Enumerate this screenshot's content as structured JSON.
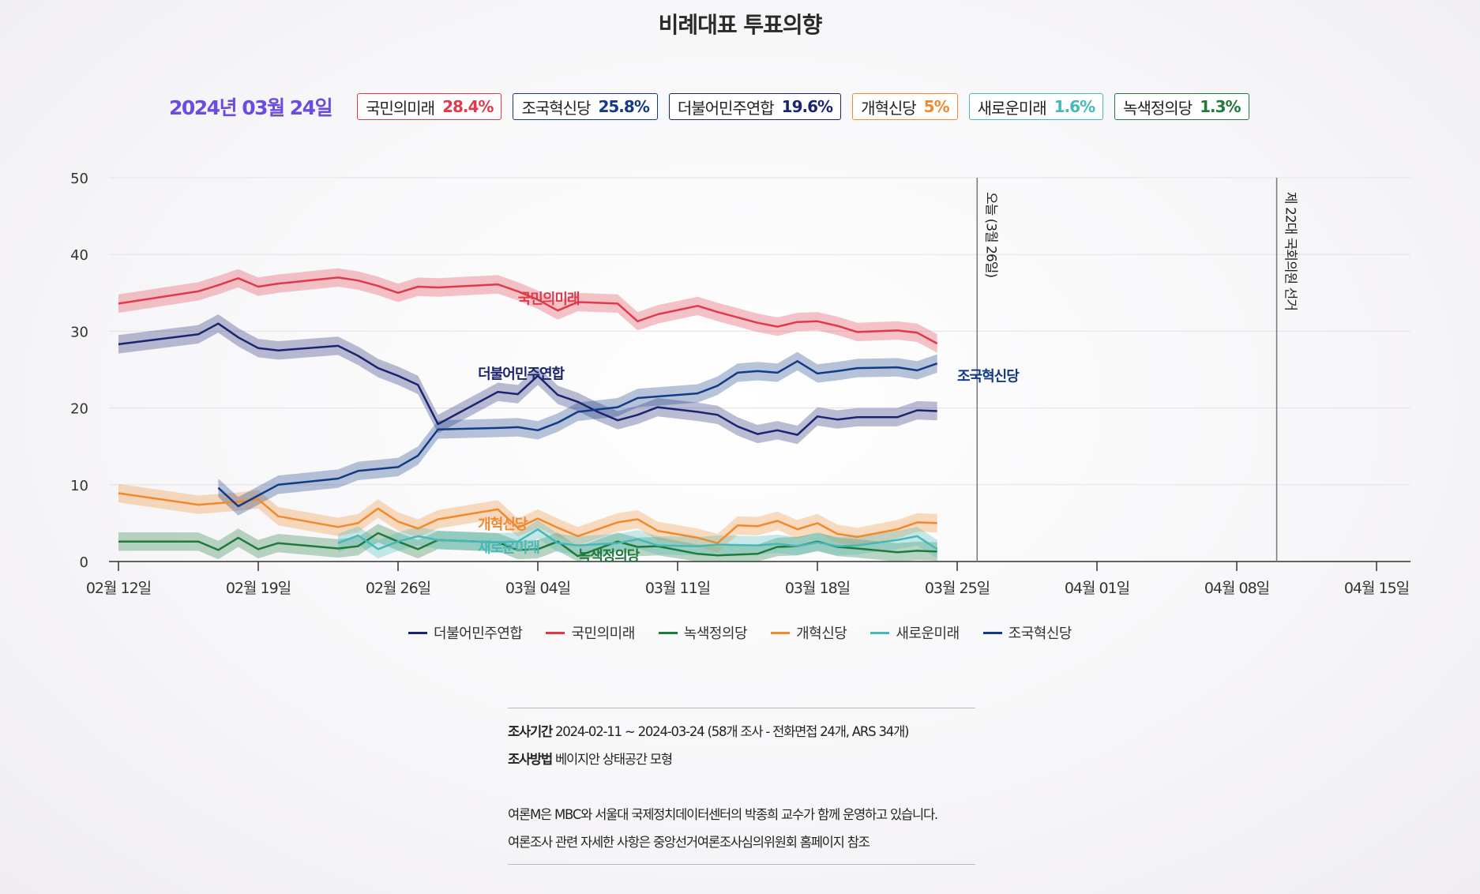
{
  "title": "비례대표 투표의향",
  "summary": {
    "date": "2024년 03월 24일",
    "badges": [
      {
        "name": "국민의미래",
        "value": "28.4%",
        "color": "#e03a4a"
      },
      {
        "name": "조국혁신당",
        "value": "25.8%",
        "color": "#123b86"
      },
      {
        "name": "더불어민주연합",
        "value": "19.6%",
        "color": "#1b2470"
      },
      {
        "name": "개혁신당",
        "value": "5%",
        "color": "#f08a2e"
      },
      {
        "name": "새로운미래",
        "value": "1.6%",
        "color": "#46b8b8"
      },
      {
        "name": "녹색정의당",
        "value": "1.3%",
        "color": "#1f7a3c"
      }
    ]
  },
  "chart_data": {
    "type": "line",
    "xlabel": "",
    "ylabel": "",
    "ylim": [
      0,
      50
    ],
    "yticks": [
      0,
      10,
      20,
      30,
      40,
      50
    ],
    "xlim": [
      "2024-02-12",
      "2024-04-16"
    ],
    "xticks": [
      {
        "date": "2024-02-12",
        "label": "02월 12일"
      },
      {
        "date": "2024-02-19",
        "label": "02월 19일"
      },
      {
        "date": "2024-02-26",
        "label": "02월 26일"
      },
      {
        "date": "2024-03-04",
        "label": "03월 04일"
      },
      {
        "date": "2024-03-11",
        "label": "03월 11일"
      },
      {
        "date": "2024-03-18",
        "label": "03월 18일"
      },
      {
        "date": "2024-03-25",
        "label": "03월 25일"
      },
      {
        "date": "2024-04-01",
        "label": "04월 01일"
      },
      {
        "date": "2024-04-08",
        "label": "04월 08일"
      },
      {
        "date": "2024-04-15",
        "label": "04월 15일"
      }
    ],
    "grid": true,
    "legend_position": "bottom-center",
    "band_halfwidth": 1.2,
    "reference_lines": [
      {
        "date": "2024-03-26",
        "label": "오늘 (3월 26일)"
      },
      {
        "date": "2024-04-10",
        "label": "제 22대 국회의원 선거"
      }
    ],
    "series": [
      {
        "name": "더불어민주연합",
        "color": "#1b2470",
        "label_at": [
          "2024-03-01",
          23.8
        ],
        "points": [
          [
            "2024-02-12",
            28.3
          ],
          [
            "2024-02-16",
            29.6
          ],
          [
            "2024-02-17",
            31.0
          ],
          [
            "2024-02-18",
            29.2
          ],
          [
            "2024-02-19",
            27.8
          ],
          [
            "2024-02-20",
            27.5
          ],
          [
            "2024-02-23",
            28.1
          ],
          [
            "2024-02-24",
            26.8
          ],
          [
            "2024-02-25",
            25.2
          ],
          [
            "2024-02-26",
            24.2
          ],
          [
            "2024-02-27",
            23.0
          ],
          [
            "2024-02-28",
            17.9
          ],
          [
            "2024-03-02",
            22.1
          ],
          [
            "2024-03-03",
            21.8
          ],
          [
            "2024-03-04",
            24.2
          ],
          [
            "2024-03-05",
            21.7
          ],
          [
            "2024-03-06",
            20.8
          ],
          [
            "2024-03-07",
            19.5
          ],
          [
            "2024-03-08",
            18.4
          ],
          [
            "2024-03-09",
            19.1
          ],
          [
            "2024-03-10",
            20.1
          ],
          [
            "2024-03-12",
            19.5
          ],
          [
            "2024-03-13",
            19.1
          ],
          [
            "2024-03-14",
            17.6
          ],
          [
            "2024-03-15",
            16.6
          ],
          [
            "2024-03-16",
            17.1
          ],
          [
            "2024-03-17",
            16.5
          ],
          [
            "2024-03-18",
            18.9
          ],
          [
            "2024-03-19",
            18.5
          ],
          [
            "2024-03-20",
            18.8
          ],
          [
            "2024-03-22",
            18.8
          ],
          [
            "2024-03-23",
            19.7
          ],
          [
            "2024-03-24",
            19.6
          ]
        ]
      },
      {
        "name": "국민의미래",
        "color": "#e03a4a",
        "label_at": [
          "2024-03-03",
          33.6
        ],
        "points": [
          [
            "2024-02-12",
            33.6
          ],
          [
            "2024-02-16",
            35.2
          ],
          [
            "2024-02-17",
            36.0
          ],
          [
            "2024-02-18",
            36.9
          ],
          [
            "2024-02-19",
            35.8
          ],
          [
            "2024-02-20",
            36.2
          ],
          [
            "2024-02-23",
            37.0
          ],
          [
            "2024-02-24",
            36.6
          ],
          [
            "2024-02-25",
            35.9
          ],
          [
            "2024-02-26",
            35.0
          ],
          [
            "2024-02-27",
            35.8
          ],
          [
            "2024-02-28",
            35.7
          ],
          [
            "2024-03-02",
            36.1
          ],
          [
            "2024-03-03",
            35.2
          ],
          [
            "2024-03-04",
            34.1
          ],
          [
            "2024-03-05",
            32.7
          ],
          [
            "2024-03-06",
            33.8
          ],
          [
            "2024-03-08",
            33.6
          ],
          [
            "2024-03-09",
            31.3
          ],
          [
            "2024-03-10",
            32.2
          ],
          [
            "2024-03-12",
            33.3
          ],
          [
            "2024-03-13",
            32.5
          ],
          [
            "2024-03-15",
            31.1
          ],
          [
            "2024-03-16",
            30.6
          ],
          [
            "2024-03-17",
            31.2
          ],
          [
            "2024-03-18",
            31.3
          ],
          [
            "2024-03-19",
            30.7
          ],
          [
            "2024-03-20",
            29.9
          ],
          [
            "2024-03-22",
            30.1
          ],
          [
            "2024-03-23",
            29.8
          ],
          [
            "2024-03-24",
            28.4
          ]
        ]
      },
      {
        "name": "녹색정의당",
        "color": "#1f7a3c",
        "label_at": [
          "2024-03-06",
          0.1
        ],
        "points": [
          [
            "2024-02-12",
            2.6
          ],
          [
            "2024-02-16",
            2.6
          ],
          [
            "2024-02-17",
            1.5
          ],
          [
            "2024-02-18",
            3.1
          ],
          [
            "2024-02-19",
            1.6
          ],
          [
            "2024-02-20",
            2.4
          ],
          [
            "2024-02-23",
            1.7
          ],
          [
            "2024-02-24",
            2.0
          ],
          [
            "2024-02-25",
            3.7
          ],
          [
            "2024-02-26",
            2.6
          ],
          [
            "2024-02-27",
            1.6
          ],
          [
            "2024-02-28",
            2.8
          ],
          [
            "2024-03-02",
            2.5
          ],
          [
            "2024-03-03",
            1.5
          ],
          [
            "2024-03-04",
            1.6
          ],
          [
            "2024-03-05",
            2.6
          ],
          [
            "2024-03-06",
            0.7
          ],
          [
            "2024-03-08",
            2.6
          ],
          [
            "2024-03-09",
            1.9
          ],
          [
            "2024-03-10",
            2.0
          ],
          [
            "2024-03-12",
            1.0
          ],
          [
            "2024-03-13",
            0.8
          ],
          [
            "2024-03-15",
            1.0
          ],
          [
            "2024-03-16",
            1.9
          ],
          [
            "2024-03-17",
            2.0
          ],
          [
            "2024-03-18",
            2.6
          ],
          [
            "2024-03-19",
            1.9
          ],
          [
            "2024-03-20",
            1.7
          ],
          [
            "2024-03-22",
            1.2
          ],
          [
            "2024-03-23",
            1.4
          ],
          [
            "2024-03-24",
            1.3
          ]
        ]
      },
      {
        "name": "개혁신당",
        "color": "#f08a2e",
        "label_at": [
          "2024-03-01",
          4.2
        ],
        "points": [
          [
            "2024-02-12",
            8.9
          ],
          [
            "2024-02-16",
            7.4
          ],
          [
            "2024-02-18",
            7.8
          ],
          [
            "2024-02-19",
            8.1
          ],
          [
            "2024-02-20",
            5.9
          ],
          [
            "2024-02-23",
            4.5
          ],
          [
            "2024-02-24",
            5.0
          ],
          [
            "2024-02-25",
            6.9
          ],
          [
            "2024-02-26",
            5.2
          ],
          [
            "2024-02-27",
            4.3
          ],
          [
            "2024-02-28",
            5.5
          ],
          [
            "2024-03-02",
            6.8
          ],
          [
            "2024-03-03",
            4.4
          ],
          [
            "2024-03-04",
            5.6
          ],
          [
            "2024-03-05",
            4.4
          ],
          [
            "2024-03-06",
            3.3
          ],
          [
            "2024-03-08",
            5.1
          ],
          [
            "2024-03-09",
            5.5
          ],
          [
            "2024-03-10",
            4.0
          ],
          [
            "2024-03-12",
            3.1
          ],
          [
            "2024-03-13",
            2.4
          ],
          [
            "2024-03-14",
            4.7
          ],
          [
            "2024-03-15",
            4.6
          ],
          [
            "2024-03-16",
            5.3
          ],
          [
            "2024-03-17",
            4.2
          ],
          [
            "2024-03-18",
            5.0
          ],
          [
            "2024-03-19",
            3.6
          ],
          [
            "2024-03-20",
            3.2
          ],
          [
            "2024-03-22",
            4.2
          ],
          [
            "2024-03-23",
            5.1
          ],
          [
            "2024-03-24",
            5.0
          ]
        ]
      },
      {
        "name": "새로운미래",
        "color": "#46b8b8",
        "label_at": [
          "2024-03-01",
          1.2
        ],
        "points": [
          [
            "2024-02-23",
            2.4
          ],
          [
            "2024-02-24",
            3.4
          ],
          [
            "2024-02-25",
            1.6
          ],
          [
            "2024-02-26",
            2.6
          ],
          [
            "2024-02-27",
            3.3
          ],
          [
            "2024-02-28",
            2.8
          ],
          [
            "2024-03-02",
            2.5
          ],
          [
            "2024-03-03",
            2.6
          ],
          [
            "2024-03-04",
            4.2
          ],
          [
            "2024-03-05",
            2.4
          ],
          [
            "2024-03-06",
            2.1
          ],
          [
            "2024-03-08",
            2.4
          ],
          [
            "2024-03-09",
            2.9
          ],
          [
            "2024-03-10",
            2.1
          ],
          [
            "2024-03-12",
            2.0
          ],
          [
            "2024-03-13",
            2.2
          ],
          [
            "2024-03-15",
            2.1
          ],
          [
            "2024-03-16",
            2.3
          ],
          [
            "2024-03-17",
            2.0
          ],
          [
            "2024-03-18",
            2.5
          ],
          [
            "2024-03-19",
            2.0
          ],
          [
            "2024-03-20",
            2.1
          ],
          [
            "2024-03-22",
            2.8
          ],
          [
            "2024-03-23",
            3.3
          ],
          [
            "2024-03-24",
            1.6
          ]
        ]
      },
      {
        "name": "조국혁신당",
        "color": "#123b86",
        "label_at": [
          "2024-03-25",
          23.5
        ],
        "points": [
          [
            "2024-02-17",
            9.6
          ],
          [
            "2024-02-18",
            7.2
          ],
          [
            "2024-02-19",
            8.6
          ],
          [
            "2024-02-20",
            10.0
          ],
          [
            "2024-02-23",
            10.8
          ],
          [
            "2024-02-24",
            11.8
          ],
          [
            "2024-02-26",
            12.3
          ],
          [
            "2024-02-27",
            13.8
          ],
          [
            "2024-02-28",
            17.2
          ],
          [
            "2024-03-02",
            17.4
          ],
          [
            "2024-03-03",
            17.5
          ],
          [
            "2024-03-04",
            17.1
          ],
          [
            "2024-03-05",
            18.1
          ],
          [
            "2024-03-06",
            19.5
          ],
          [
            "2024-03-07",
            19.8
          ],
          [
            "2024-03-08",
            20.1
          ],
          [
            "2024-03-09",
            21.3
          ],
          [
            "2024-03-12",
            21.9
          ],
          [
            "2024-03-13",
            22.9
          ],
          [
            "2024-03-14",
            24.6
          ],
          [
            "2024-03-15",
            24.8
          ],
          [
            "2024-03-16",
            24.6
          ],
          [
            "2024-03-17",
            26.1
          ],
          [
            "2024-03-18",
            24.5
          ],
          [
            "2024-03-19",
            24.8
          ],
          [
            "2024-03-20",
            25.2
          ],
          [
            "2024-03-22",
            25.3
          ],
          [
            "2024-03-23",
            24.9
          ],
          [
            "2024-03-24",
            25.8
          ]
        ]
      }
    ]
  },
  "legend_order": [
    "더불어민주연합",
    "국민의미래",
    "녹색정의당",
    "개혁신당",
    "새로운미래",
    "조국혁신당"
  ],
  "footer": {
    "period_label": "조사기간",
    "period_text": "2024-02-11 ~ 2024-03-24 (58개 조사 - 전화면접 24개, ARS 34개)",
    "method_label": "조사방법",
    "method_text": "베이지안 상태공간 모형",
    "note1": "여론M은 MBC와 서울대 국제정치데이터센터의 박종희 교수가 함께 운영하고 있습니다.",
    "note2": "여론조사 관련 자세한 사항은 중앙선거여론조사심의위원회 홈페이지 참조"
  }
}
